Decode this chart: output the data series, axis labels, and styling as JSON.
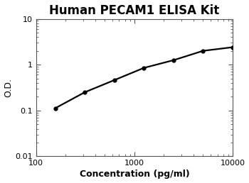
{
  "title": "Human PECAM1 ELISA Kit",
  "xlabel": "Concentration (pg/ml)",
  "ylabel": "O.D.",
  "x_data": [
    156.25,
    312.5,
    625,
    1250,
    2500,
    5000,
    10000
  ],
  "y_data": [
    0.112,
    0.25,
    0.46,
    0.85,
    1.25,
    2.0,
    2.4
  ],
  "xlim": [
    100,
    10000
  ],
  "ylim": [
    0.01,
    10
  ],
  "line_color": "#000000",
  "marker": "o",
  "marker_size": 3.5,
  "marker_facecolor": "#000000",
  "line_width": 1.6,
  "title_fontsize": 12,
  "label_fontsize": 9,
  "tick_fontsize": 8,
  "background_color": "#ffffff",
  "spine_color": "#555555"
}
